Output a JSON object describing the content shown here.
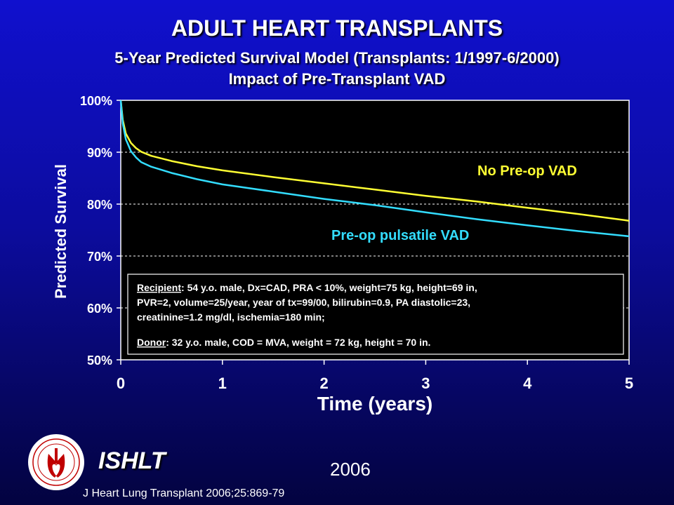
{
  "slide": {
    "title": "ADULT HEART TRANSPLANTS",
    "subtitle1": "5-Year Predicted Survival Model (Transplants: 1/1997-6/2000)",
    "subtitle2": "Impact of Pre-Transplant VAD",
    "org": "ISHLT",
    "year": "2006",
    "citation": "J Heart Lung Transplant 2006;25:869-79"
  },
  "chart_data": {
    "type": "line",
    "xlabel": "Time (years)",
    "ylabel": "Predicted Survival",
    "xlim": [
      0,
      5
    ],
    "ylim": [
      50,
      100
    ],
    "x_ticks": [
      "0",
      "1",
      "2",
      "3",
      "4",
      "5"
    ],
    "y_ticks": [
      "50%",
      "60%",
      "70%",
      "80%",
      "90%",
      "100%"
    ],
    "grid": "horizontal dashed",
    "series": [
      {
        "name": "No Pre-op VAD",
        "color": "#ffff33",
        "x": [
          0,
          0.02,
          0.05,
          0.1,
          0.15,
          0.2,
          0.3,
          0.5,
          0.75,
          1,
          1.5,
          2,
          2.5,
          3,
          3.5,
          4,
          4.5,
          5
        ],
        "y": [
          100,
          96.2,
          93.6,
          91.8,
          90.8,
          90.1,
          89.3,
          88.3,
          87.3,
          86.5,
          85.2,
          84.0,
          82.8,
          81.6,
          80.5,
          79.3,
          78.1,
          76.8
        ]
      },
      {
        "name": "Pre-op pulsatile VAD",
        "color": "#33ddff",
        "x": [
          0,
          0.02,
          0.05,
          0.1,
          0.15,
          0.2,
          0.3,
          0.5,
          0.75,
          1,
          1.5,
          2,
          2.5,
          3,
          3.5,
          4,
          4.5,
          5
        ],
        "y": [
          100,
          95.5,
          92.5,
          90.2,
          89.0,
          88.1,
          87.2,
          86.0,
          84.8,
          83.8,
          82.4,
          81.0,
          79.8,
          78.4,
          77.1,
          75.9,
          74.8,
          73.8
        ]
      }
    ],
    "annotation": {
      "recipient_label": "Recipient",
      "recipient_line1": ": 54 y.o. male, Dx=CAD, PRA < 10%, weight=75 kg, height=69 in,",
      "recipient_line2": "PVR=2, volume=25/year, year of tx=99/00, bilirubin=0.9, PA diastolic=23,",
      "recipient_line3": "creatinine=1.2 mg/dl, ischemia=180 min;",
      "donor_label": "Donor",
      "donor_line": ": 32 y.o. male, COD = MVA, weight = 72 kg, height = 70 in."
    }
  }
}
